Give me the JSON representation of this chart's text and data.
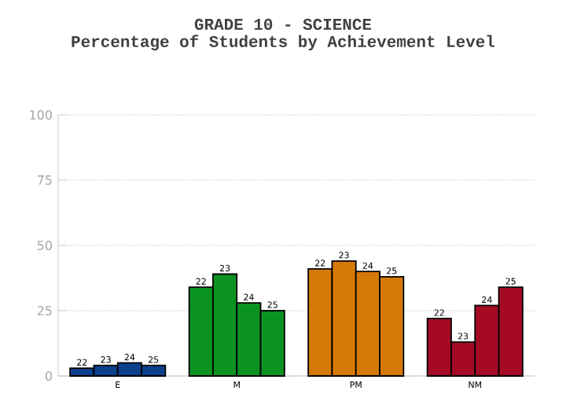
{
  "chart_data": {
    "type": "bar",
    "title": "GRADE 10 - SCIENCE",
    "subtitle": "Percentage of Students by Achievement Level",
    "categories": [
      "E",
      "M",
      "PM",
      "NM"
    ],
    "series": [
      {
        "name": "22",
        "colors": [
          "#0c3f8c",
          "#0b9321",
          "#d67a07",
          "#a50a25"
        ],
        "values": [
          3,
          34,
          41,
          22
        ]
      },
      {
        "name": "23",
        "colors": [
          "#0c3f8c",
          "#0b9321",
          "#d67a07",
          "#a50a25"
        ],
        "values": [
          4,
          39,
          44,
          13
        ]
      },
      {
        "name": "24",
        "colors": [
          "#0c3f8c",
          "#0b9321",
          "#d67a07",
          "#a50a25"
        ],
        "values": [
          5,
          28,
          40,
          27
        ]
      },
      {
        "name": "25",
        "colors": [
          "#0c3f8c",
          "#0b9321",
          "#d67a07",
          "#a50a25"
        ],
        "values": [
          4,
          25,
          38,
          34
        ]
      }
    ],
    "ylim": [
      0,
      100
    ],
    "yticks": [
      0,
      25,
      50,
      75,
      100
    ],
    "grid": "y"
  }
}
